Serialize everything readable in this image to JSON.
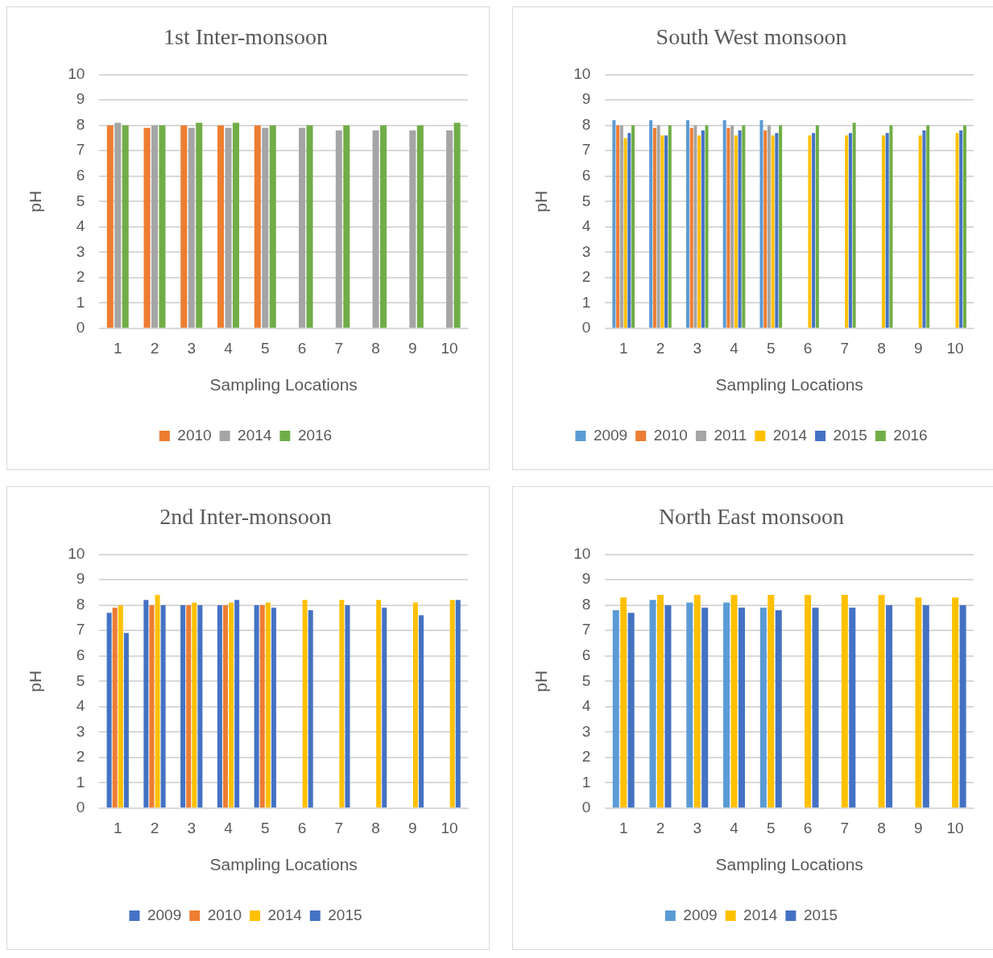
{
  "chart_data": [
    {
      "type": "bar",
      "title": "1st Inter-monsoon",
      "xlabel": "Sampling Locations",
      "ylabel": "pH",
      "categories": [
        "1",
        "2",
        "3",
        "4",
        "5",
        "6",
        "7",
        "8",
        "9",
        "10"
      ],
      "ylim": [
        0,
        10
      ],
      "yticks": [
        0,
        1,
        2,
        3,
        4,
        5,
        6,
        7,
        8,
        9,
        10
      ],
      "grid": "y",
      "legend": "bottom",
      "series": [
        {
          "name": "2010",
          "color": "#ed7d31",
          "values": [
            8,
            7.9,
            8,
            8,
            8,
            null,
            null,
            null,
            null,
            null
          ]
        },
        {
          "name": "2014",
          "color": "#a5a5a5",
          "values": [
            8.1,
            8,
            7.9,
            7.9,
            7.9,
            7.9,
            7.8,
            7.8,
            7.8,
            7.8
          ]
        },
        {
          "name": "2016",
          "color": "#70ad47",
          "values": [
            8,
            8,
            8.1,
            8.1,
            8,
            8,
            8,
            8,
            8,
            8.1
          ]
        }
      ]
    },
    {
      "type": "bar",
      "title": "South West monsoon",
      "xlabel": "Sampling Locations",
      "ylabel": "pH",
      "categories": [
        "1",
        "2",
        "3",
        "4",
        "5",
        "6",
        "7",
        "8",
        "9",
        "10"
      ],
      "ylim": [
        0,
        10
      ],
      "yticks": [
        0,
        1,
        2,
        3,
        4,
        5,
        6,
        7,
        8,
        9,
        10
      ],
      "grid": "y",
      "legend": "bottom",
      "series": [
        {
          "name": "2009",
          "color": "#5b9bd5",
          "values": [
            8.2,
            8.2,
            8.2,
            8.2,
            8.2,
            null,
            null,
            null,
            null,
            null
          ]
        },
        {
          "name": "2010",
          "color": "#ed7d31",
          "values": [
            8,
            7.9,
            7.9,
            7.9,
            7.8,
            null,
            null,
            null,
            null,
            null
          ]
        },
        {
          "name": "2011",
          "color": "#a5a5a5",
          "values": [
            8,
            8,
            8,
            8,
            8,
            null,
            null,
            null,
            null,
            null
          ]
        },
        {
          "name": "2014",
          "color": "#ffc000",
          "values": [
            7.5,
            7.6,
            7.6,
            7.6,
            7.6,
            7.6,
            7.6,
            7.6,
            7.6,
            7.7
          ]
        },
        {
          "name": "2015",
          "color": "#4472c4",
          "values": [
            7.7,
            7.6,
            7.8,
            7.8,
            7.7,
            7.7,
            7.7,
            7.7,
            7.8,
            7.8
          ]
        },
        {
          "name": "2016",
          "color": "#70ad47",
          "values": [
            8,
            8,
            8,
            8,
            8,
            8,
            8.1,
            8,
            8,
            8
          ]
        }
      ]
    },
    {
      "type": "bar",
      "title": "2nd Inter-monsoon",
      "xlabel": "Sampling Locations",
      "ylabel": "pH",
      "categories": [
        "1",
        "2",
        "3",
        "4",
        "5",
        "6",
        "7",
        "8",
        "9",
        "10"
      ],
      "ylim": [
        0,
        10
      ],
      "yticks": [
        0,
        1,
        2,
        3,
        4,
        5,
        6,
        7,
        8,
        9,
        10
      ],
      "grid": "y",
      "legend": "bottom",
      "series": [
        {
          "name": "2009",
          "color": "#4472c4",
          "values": [
            7.7,
            8.2,
            8,
            8,
            8,
            null,
            null,
            null,
            null,
            null
          ]
        },
        {
          "name": "2010",
          "color": "#ed7d31",
          "values": [
            7.9,
            8,
            8,
            8,
            8,
            null,
            null,
            null,
            null,
            null
          ]
        },
        {
          "name": "2014",
          "color": "#ffc000",
          "values": [
            8,
            8.4,
            8.1,
            8.1,
            8.1,
            8.2,
            8.2,
            8.2,
            8.1,
            8.2
          ]
        },
        {
          "name": "2015",
          "color": "#4472c4",
          "values": [
            6.9,
            8,
            8,
            8.2,
            7.9,
            7.8,
            8,
            7.9,
            7.6,
            8.2
          ]
        }
      ]
    },
    {
      "type": "bar",
      "title": "North East monsoon",
      "xlabel": "Sampling Locations",
      "ylabel": "pH",
      "categories": [
        "1",
        "2",
        "3",
        "4",
        "5",
        "6",
        "7",
        "8",
        "9",
        "10"
      ],
      "ylim": [
        0,
        10
      ],
      "yticks": [
        0,
        1,
        2,
        3,
        4,
        5,
        6,
        7,
        8,
        9,
        10
      ],
      "grid": "y",
      "legend": "bottom",
      "series": [
        {
          "name": "2009",
          "color": "#5b9bd5",
          "values": [
            7.8,
            8.2,
            8.1,
            8.1,
            7.9,
            null,
            null,
            null,
            null,
            null
          ]
        },
        {
          "name": "2014",
          "color": "#ffc000",
          "values": [
            8.3,
            8.4,
            8.4,
            8.4,
            8.4,
            8.4,
            8.4,
            8.4,
            8.3,
            8.3
          ]
        },
        {
          "name": "2015",
          "color": "#4472c4",
          "values": [
            7.7,
            8,
            7.9,
            7.9,
            7.8,
            7.9,
            7.9,
            8,
            8,
            8
          ]
        }
      ]
    }
  ]
}
